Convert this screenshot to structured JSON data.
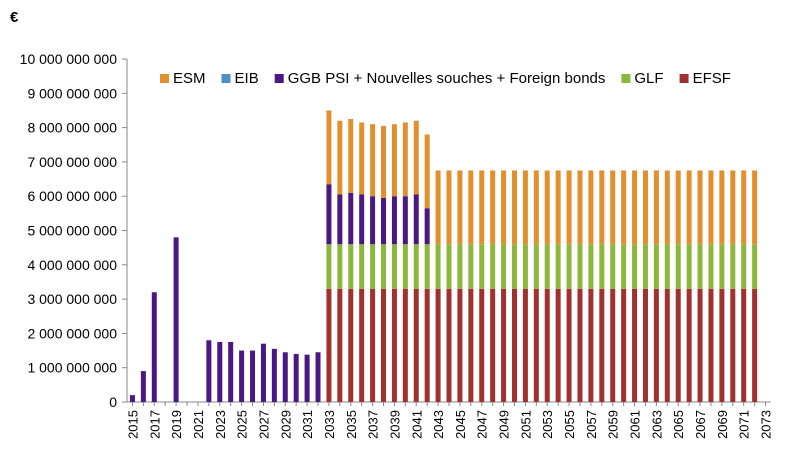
{
  "chart_data": {
    "type": "bar",
    "stacked": true,
    "unit_label": "€",
    "title": "",
    "xlabel": "",
    "ylabel": "",
    "ylim": [
      0,
      10000000000
    ],
    "grid": false,
    "legend_position": "top-right",
    "y_ticks": [
      "0",
      "1 000 000 000",
      "2 000 000 000",
      "3 000 000 000",
      "4 000 000 000",
      "5 000 000 000",
      "6 000 000 000",
      "7 000 000 000",
      "8 000 000 000",
      "9 000 000 000",
      "10 000 000 000"
    ],
    "categories": [
      2015,
      2016,
      2017,
      2018,
      2019,
      2020,
      2021,
      2022,
      2023,
      2024,
      2025,
      2026,
      2027,
      2028,
      2029,
      2030,
      2031,
      2032,
      2033,
      2034,
      2035,
      2036,
      2037,
      2038,
      2039,
      2040,
      2041,
      2042,
      2043,
      2044,
      2045,
      2046,
      2047,
      2048,
      2049,
      2050,
      2051,
      2052,
      2053,
      2054,
      2055,
      2056,
      2057,
      2058,
      2059,
      2060,
      2061,
      2062,
      2063,
      2064,
      2065,
      2066,
      2067,
      2068,
      2069,
      2070,
      2071,
      2072,
      2073
    ],
    "x_tick_labels": [
      "2015",
      "2017",
      "2019",
      "2021",
      "2023",
      "2025",
      "2027",
      "2029",
      "2031",
      "2033",
      "2035",
      "2037",
      "2039",
      "2041",
      "2043",
      "2045",
      "2047",
      "2049",
      "2051",
      "2053",
      "2055",
      "2057",
      "2059",
      "2061",
      "2063",
      "2065",
      "2067",
      "2069",
      "2071",
      "2073"
    ],
    "series": [
      {
        "name": "EFSF",
        "color": "#a0312e",
        "values": [
          0,
          0,
          0,
          0,
          0,
          0,
          0,
          0,
          0,
          0,
          0,
          0,
          0,
          0,
          0,
          0,
          0,
          0,
          3300000000,
          3300000000,
          3300000000,
          3300000000,
          3300000000,
          3300000000,
          3300000000,
          3300000000,
          3300000000,
          3300000000,
          3300000000,
          3300000000,
          3300000000,
          3300000000,
          3300000000,
          3300000000,
          3300000000,
          3300000000,
          3300000000,
          3300000000,
          3300000000,
          3300000000,
          3300000000,
          3300000000,
          3300000000,
          3300000000,
          3300000000,
          3300000000,
          3300000000,
          3300000000,
          3300000000,
          3300000000,
          3300000000,
          3300000000,
          3300000000,
          3300000000,
          3300000000,
          3300000000,
          3300000000,
          3300000000,
          0
        ]
      },
      {
        "name": "GLF",
        "color": "#8db63c",
        "values": [
          0,
          0,
          0,
          0,
          0,
          0,
          0,
          0,
          0,
          0,
          0,
          0,
          0,
          0,
          0,
          0,
          0,
          0,
          1300000000,
          1300000000,
          1300000000,
          1300000000,
          1300000000,
          1300000000,
          1300000000,
          1300000000,
          1300000000,
          1300000000,
          1300000000,
          1300000000,
          1300000000,
          1300000000,
          1300000000,
          1300000000,
          1300000000,
          1300000000,
          1300000000,
          1300000000,
          1300000000,
          1300000000,
          1300000000,
          1300000000,
          1300000000,
          1300000000,
          1300000000,
          1300000000,
          1300000000,
          1300000000,
          1300000000,
          1300000000,
          1300000000,
          1300000000,
          1300000000,
          1300000000,
          1300000000,
          1300000000,
          1300000000,
          1300000000,
          0
        ]
      },
      {
        "name": "GGB PSI + Nouvelles souches + Foreign bonds",
        "color": "#4b1883",
        "values": [
          200000000,
          900000000,
          3200000000,
          0,
          4800000000,
          0,
          0,
          1800000000,
          1750000000,
          1750000000,
          1500000000,
          1500000000,
          1700000000,
          1550000000,
          1450000000,
          1400000000,
          1380000000,
          1450000000,
          1750000000,
          1450000000,
          1500000000,
          1450000000,
          1400000000,
          1350000000,
          1400000000,
          1400000000,
          1450000000,
          1050000000,
          0,
          0,
          0,
          0,
          0,
          0,
          0,
          0,
          0,
          0,
          0,
          0,
          0,
          0,
          0,
          0,
          0,
          0,
          0,
          0,
          0,
          0,
          0,
          0,
          0,
          0,
          0,
          0,
          0,
          0,
          0
        ]
      },
      {
        "name": "EIB",
        "color": "#4a90c4",
        "values": [
          0,
          0,
          0,
          0,
          0,
          0,
          0,
          0,
          0,
          0,
          0,
          0,
          0,
          0,
          0,
          0,
          0,
          0,
          0,
          0,
          0,
          0,
          0,
          0,
          0,
          0,
          0,
          0,
          0,
          0,
          0,
          0,
          0,
          0,
          0,
          0,
          0,
          0,
          0,
          0,
          0,
          0,
          0,
          0,
          0,
          0,
          0,
          0,
          0,
          0,
          0,
          0,
          0,
          0,
          0,
          0,
          0,
          0,
          0
        ]
      },
      {
        "name": "ESM",
        "color": "#e2902e",
        "values": [
          0,
          0,
          0,
          0,
          0,
          0,
          0,
          0,
          0,
          0,
          0,
          0,
          0,
          0,
          0,
          0,
          0,
          0,
          2150000000,
          2150000000,
          2150000000,
          2100000000,
          2100000000,
          2100000000,
          2100000000,
          2150000000,
          2150000000,
          2150000000,
          2150000000,
          2150000000,
          2150000000,
          2150000000,
          2150000000,
          2150000000,
          2150000000,
          2150000000,
          2150000000,
          2150000000,
          2150000000,
          2150000000,
          2150000000,
          2150000000,
          2150000000,
          2150000000,
          2150000000,
          2150000000,
          2150000000,
          2150000000,
          2150000000,
          2150000000,
          2150000000,
          2150000000,
          2150000000,
          2150000000,
          2150000000,
          2150000000,
          2150000000,
          2150000000,
          0
        ]
      }
    ],
    "legend": [
      {
        "name": "ESM",
        "color": "#e2902e"
      },
      {
        "name": "EIB",
        "color": "#4a90c4"
      },
      {
        "name": "GGB PSI + Nouvelles souches + Foreign bonds",
        "color": "#4b1883"
      },
      {
        "name": "GLF",
        "color": "#8db63c"
      },
      {
        "name": "EFSF",
        "color": "#a0312e"
      }
    ]
  }
}
